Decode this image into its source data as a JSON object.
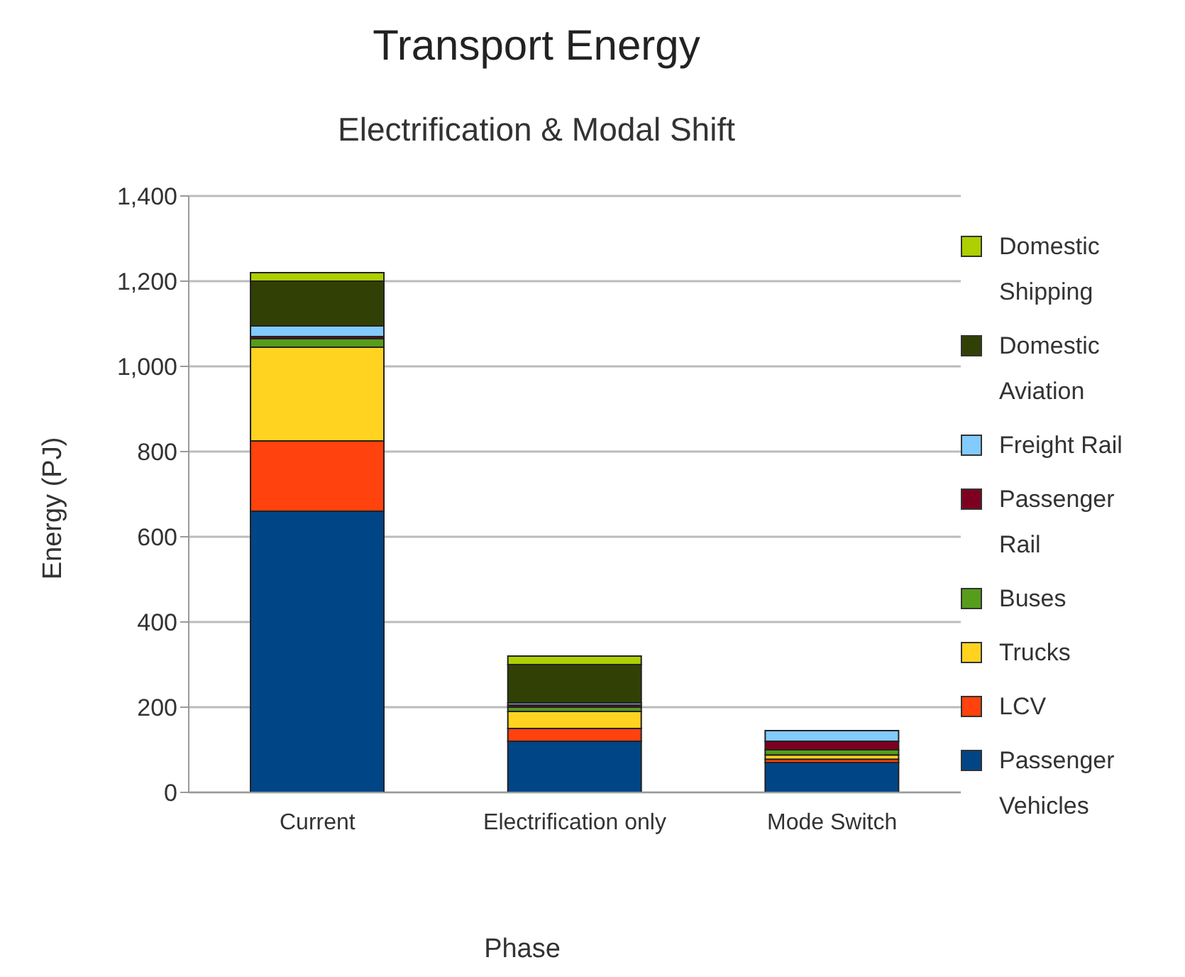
{
  "chart_data": {
    "type": "bar",
    "title": "Transport Energy",
    "subtitle": "Electrification & Modal Shift",
    "xlabel": "Phase",
    "ylabel": "Energy (PJ)",
    "categories": [
      "Current",
      "Electrification only",
      "Mode Switch"
    ],
    "stacked": true,
    "ylim": [
      0,
      1400
    ],
    "yticks": [
      0,
      {
        "value": 200,
        "label": "200"
      },
      {
        "value": 400,
        "label": "400"
      },
      {
        "value": 600,
        "label": "600"
      },
      {
        "value": 800,
        "label": "800"
      },
      {
        "value": 1000,
        "label": "1,000"
      },
      {
        "value": 1200,
        "label": "1,200"
      },
      {
        "value": 1400,
        "label": "1,400"
      }
    ],
    "grid": "y",
    "legend": "right",
    "series": [
      {
        "name": "Passenger Vehicles",
        "color": "#004586",
        "values": [
          660,
          120,
          70
        ]
      },
      {
        "name": "LCV",
        "color": "#ff420e",
        "values": [
          165,
          30,
          8
        ]
      },
      {
        "name": "Trucks",
        "color": "#ffd320",
        "values": [
          220,
          40,
          10
        ]
      },
      {
        "name": "Buses",
        "color": "#579d1c",
        "values": [
          20,
          10,
          12
        ]
      },
      {
        "name": "Passenger Rail",
        "color": "#7e0021",
        "values": [
          5,
          5,
          20
        ]
      },
      {
        "name": "Freight Rail",
        "color": "#83caff",
        "values": [
          25,
          5,
          25
        ]
      },
      {
        "name": "Domestic Aviation",
        "color": "#314004",
        "values": [
          105,
          90,
          0
        ]
      },
      {
        "name": "Domestic Shipping",
        "color": "#aecf00",
        "values": [
          20,
          20,
          0
        ]
      }
    ]
  }
}
